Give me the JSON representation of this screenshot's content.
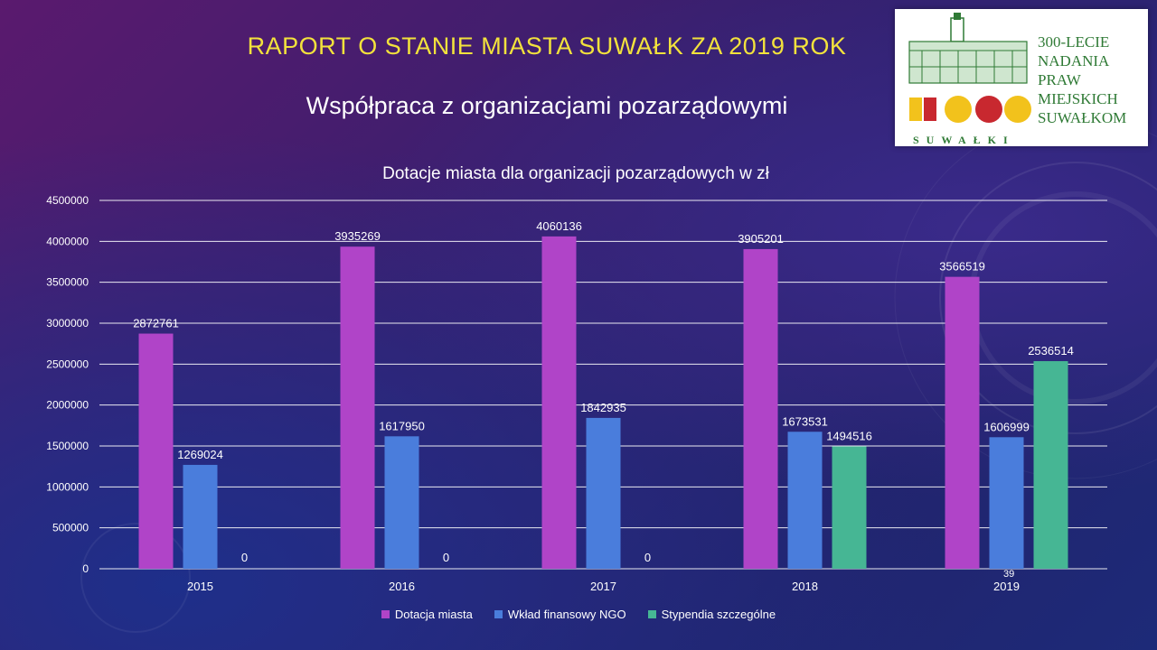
{
  "header": {
    "title": "RAPORT O STANIE MIASTA SUWAŁK ZA 2019 ROK",
    "subtitle": "Współpraca z organizacjami pozarządowymi"
  },
  "logo": {
    "lines": [
      "300-LECIE",
      "NADANIA",
      "PRAW",
      "MIEJSKICH",
      "SUWAŁKOM"
    ],
    "city": "SUWAŁKI"
  },
  "page_number": "39",
  "colors": {
    "title": "#f2e23c",
    "series": [
      "#b044c8",
      "#4a7ddc",
      "#46b694"
    ],
    "grid": "#ffffff"
  },
  "chart_data": {
    "type": "bar",
    "title": "Dotacje miasta dla organizacji pozarządowych w zł",
    "categories": [
      "2015",
      "2016",
      "2017",
      "2018",
      "2019"
    ],
    "series": [
      {
        "name": "Dotacja miasta",
        "values": [
          2872761,
          3935269,
          4060136,
          3905201,
          3566519
        ]
      },
      {
        "name": "Wkład finansowy NGO",
        "values": [
          1269024,
          1617950,
          1842935,
          1673531,
          1606999
        ]
      },
      {
        "name": "Stypendia szczególne",
        "values": [
          0,
          0,
          0,
          1494516,
          2536514
        ]
      }
    ],
    "ylim": [
      0,
      4500000
    ],
    "yticks": [
      "0",
      "500000",
      "1000000",
      "1500000",
      "2000000",
      "2500000",
      "3000000",
      "3500000",
      "4000000",
      "4500000"
    ],
    "grid": true,
    "legend_position": "bottom"
  }
}
